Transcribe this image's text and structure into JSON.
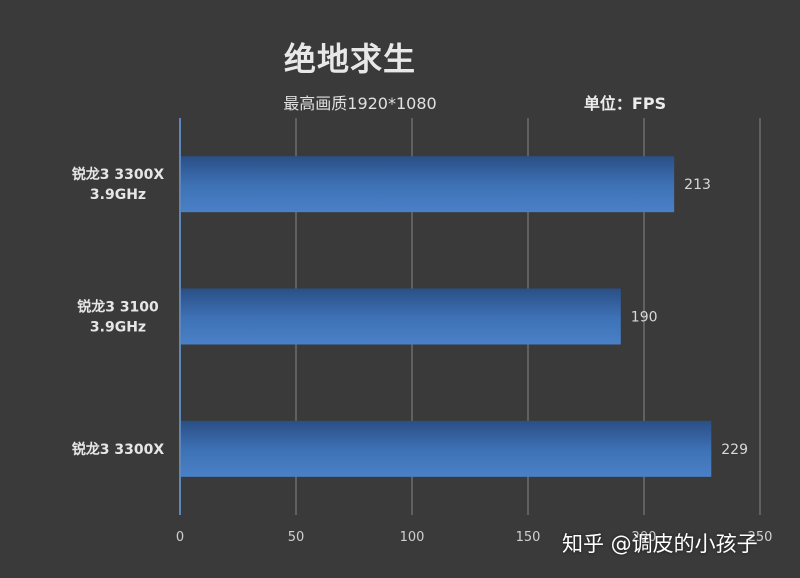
{
  "chart_data": {
    "type": "bar",
    "orientation": "horizontal",
    "title": "绝地求生",
    "subtitle": "最高画质1920*1080",
    "unit_label": "单位：FPS",
    "categories": [
      [
        "锐龙3 3300X",
        "3.9GHz"
      ],
      [
        "锐龙3 3100",
        "3.9GHz"
      ],
      [
        "锐龙3 3300X"
      ]
    ],
    "values": [
      213,
      190,
      229
    ],
    "xlim": [
      0,
      250
    ],
    "xticks": [
      "0",
      "50",
      "100",
      "150",
      "200",
      "250"
    ],
    "grid": true,
    "bar_color": "#3f73b8",
    "bar_color_dark": "#2a4f86",
    "label_color": "#d8d8d8",
    "grid_color": "#6c6c6c",
    "axis_color": "#5f86b8"
  },
  "watermark": "知乎 @调皮的小孩子"
}
